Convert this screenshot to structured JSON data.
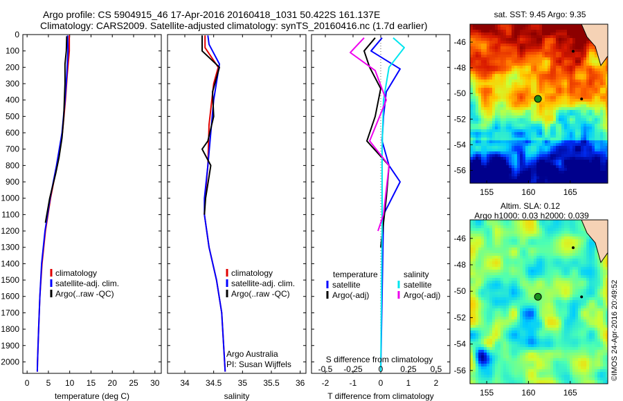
{
  "header": {
    "line1": "Argo profile: CS 5904915_46 17-Apr-2016 20160418_1031 50.422S 161.137E",
    "line2": "Climatology: CARS2009. Satellite-adjusted climatology: synTS_20160416.nc (1.7d earlier)"
  },
  "credits": {
    "org": "Argo Australia",
    "pi": "PI: Susan Wijffels",
    "copyright": "©IMOS 24-Apr-2016 20:49:52"
  },
  "colors": {
    "climatology": "#e00000",
    "satellite": "#0000ff",
    "argo": "#000000",
    "sal_satellite": "#00e5ee",
    "sal_argo": "#ee00ee"
  },
  "chart_data": [
    {
      "type": "line",
      "name": "temperature-profile",
      "xlabel": "temperature (deg C)",
      "xlim": [
        -1,
        31.5
      ],
      "xticks": [
        0,
        5,
        10,
        15,
        20,
        25,
        30
      ],
      "ylim": [
        2070,
        0
      ],
      "yticks": [
        0,
        100,
        200,
        300,
        400,
        500,
        600,
        700,
        800,
        900,
        1000,
        1100,
        1200,
        1300,
        1400,
        1500,
        1600,
        1700,
        1800,
        1900,
        2000
      ],
      "legend": [
        "climatology",
        "satellite-adj. clim.",
        "Argo(..raw -QC)"
      ],
      "series": [
        {
          "name": "climatology",
          "color": "#e00000",
          "points": [
            [
              9.9,
              5
            ],
            [
              9.9,
              100
            ],
            [
              9.4,
              250
            ],
            [
              9.0,
              400
            ],
            [
              8.3,
              600
            ],
            [
              7.0,
              800
            ],
            [
              5.5,
              1000
            ],
            [
              4.3,
              1200
            ],
            [
              3.5,
              1400
            ],
            [
              3.0,
              1600
            ],
            [
              2.7,
              1800
            ],
            [
              2.45,
              2000
            ],
            [
              2.4,
              2060
            ]
          ]
        },
        {
          "name": "satellite-adj. clim.",
          "color": "#0000ff",
          "points": [
            [
              9.5,
              5
            ],
            [
              9.6,
              100
            ],
            [
              9.3,
              250
            ],
            [
              8.9,
              400
            ],
            [
              8.2,
              600
            ],
            [
              6.9,
              800
            ],
            [
              5.4,
              1000
            ],
            [
              4.2,
              1200
            ],
            [
              3.4,
              1400
            ],
            [
              3.0,
              1600
            ],
            [
              2.7,
              1800
            ],
            [
              2.45,
              2000
            ],
            [
              2.4,
              2060
            ]
          ]
        },
        {
          "name": "Argo(..raw -QC)",
          "color": "#000000",
          "points": [
            [
              9.3,
              10
            ],
            [
              9.2,
              100
            ],
            [
              8.9,
              180
            ],
            [
              8.9,
              300
            ],
            [
              8.6,
              500
            ],
            [
              8.2,
              630
            ],
            [
              7.5,
              750
            ],
            [
              6.7,
              850
            ],
            [
              5.3,
              1000
            ],
            [
              4.3,
              1150
            ]
          ]
        }
      ]
    },
    {
      "type": "line",
      "name": "salinity-profile",
      "xlabel": "salinity",
      "xlim": [
        33.7,
        36.1
      ],
      "xticks": [
        34,
        34.5,
        35,
        35.5,
        36
      ],
      "ylim": [
        2070,
        0
      ],
      "legend": [
        "climatology",
        "satellite-adj. clim.",
        "Argo(..raw -QC)"
      ],
      "series": [
        {
          "name": "climatology",
          "color": "#e00000",
          "points": [
            [
              34.35,
              5
            ],
            [
              34.35,
              80
            ],
            [
              34.58,
              200
            ],
            [
              34.5,
              300
            ],
            [
              34.42,
              550
            ],
            [
              34.4,
              800
            ],
            [
              34.35,
              1000
            ],
            [
              34.34,
              1100
            ],
            [
              34.42,
              1300
            ],
            [
              34.55,
              1500
            ],
            [
              34.64,
              1700
            ],
            [
              34.7,
              2060
            ]
          ]
        },
        {
          "name": "satellite-adj. clim.",
          "color": "#0000ff",
          "points": [
            [
              34.4,
              5
            ],
            [
              34.42,
              60
            ],
            [
              34.6,
              180
            ],
            [
              34.5,
              400
            ],
            [
              34.4,
              800
            ],
            [
              34.34,
              1000
            ],
            [
              34.34,
              1100
            ],
            [
              34.42,
              1300
            ],
            [
              34.55,
              1500
            ],
            [
              34.64,
              1700
            ],
            [
              34.7,
              2060
            ]
          ]
        },
        {
          "name": "Argo(..raw -QC)",
          "color": "#000000",
          "points": [
            [
              34.3,
              5
            ],
            [
              34.3,
              100
            ],
            [
              34.6,
              200
            ],
            [
              34.48,
              350
            ],
            [
              34.5,
              500
            ],
            [
              34.4,
              650
            ],
            [
              34.3,
              700
            ],
            [
              34.45,
              800
            ],
            [
              34.36,
              1000
            ],
            [
              34.34,
              1100
            ]
          ]
        }
      ]
    },
    {
      "type": "line",
      "name": "difference-profile",
      "xlabel": "T difference from climatology",
      "xlabel_top": "S difference from climatology",
      "xlim": [
        -2.5,
        2.5
      ],
      "xticks": [
        -2,
        -1,
        0,
        1,
        2
      ],
      "xticks_top": [
        "-0.5",
        "-0.25",
        "0",
        "0.25",
        "0.5"
      ],
      "ylim": [
        2070,
        0
      ],
      "legend": {
        "temperature": "temperature",
        "salinity": "salinity",
        "t_sat": "satellite",
        "t_argo": "Argo(-adj)",
        "s_sat": "satellite",
        "s_argo": "Argo(-adj)"
      },
      "series": [
        {
          "name": "T satellite",
          "color": "#0000ff",
          "points": [
            [
              0.05,
              20
            ],
            [
              -0.35,
              100
            ],
            [
              0.7,
              210
            ],
            [
              0.2,
              350
            ],
            [
              0.1,
              500
            ],
            [
              0.05,
              650
            ],
            [
              0.3,
              800
            ],
            [
              0.7,
              900
            ],
            [
              0.1,
              1100
            ],
            [
              0,
              2060
            ]
          ]
        },
        {
          "name": "T Argo(-adj)",
          "color": "#000000",
          "points": [
            [
              -0.2,
              20
            ],
            [
              -0.6,
              100
            ],
            [
              -0.4,
              200
            ],
            [
              0,
              330
            ],
            [
              -0.2,
              500
            ],
            [
              -0.5,
              650
            ],
            [
              0.3,
              800
            ],
            [
              0.2,
              1000
            ],
            [
              0,
              1300
            ]
          ]
        },
        {
          "name": "S satellite",
          "color": "#00e5ee",
          "points": [
            [
              0.45,
              20
            ],
            [
              0.85,
              80
            ],
            [
              0.3,
              200
            ],
            [
              0.1,
              400
            ],
            [
              0.05,
              700
            ],
            [
              0.05,
              1200
            ],
            [
              0,
              2060
            ]
          ]
        },
        {
          "name": "S Argo(-adj)",
          "color": "#ee00ee",
          "points": [
            [
              -0.6,
              20
            ],
            [
              -1.1,
              110
            ],
            [
              -0.2,
              220
            ],
            [
              0.2,
              400
            ],
            [
              -0.4,
              650
            ],
            [
              0.3,
              800
            ],
            [
              0.1,
              1100
            ],
            [
              -0.1,
              1200
            ]
          ]
        }
      ]
    },
    {
      "type": "heatmap",
      "name": "sst-map",
      "title": "sat. SST: 9.45 Argo: 9.35",
      "xticks": [
        155,
        160,
        165
      ],
      "yticks": [
        -46,
        -48,
        -50,
        -52,
        -54,
        -56
      ],
      "xlim": [
        153,
        169.5
      ],
      "ylim": [
        -57,
        -44.6
      ],
      "float_position": [
        161.137,
        -50.422
      ]
    },
    {
      "type": "heatmap",
      "name": "sla-map",
      "title": "Altim. SLA: 0.12",
      "subtitle": "Argo h1000: 0.03 h2000: 0.039",
      "xticks": [
        155,
        160,
        165
      ],
      "yticks": [
        -46,
        -48,
        -50,
        -52,
        -54,
        -56
      ],
      "xlim": [
        153,
        169.5
      ],
      "ylim": [
        -57,
        -44.6
      ],
      "float_position": [
        161.137,
        -50.422
      ]
    }
  ]
}
